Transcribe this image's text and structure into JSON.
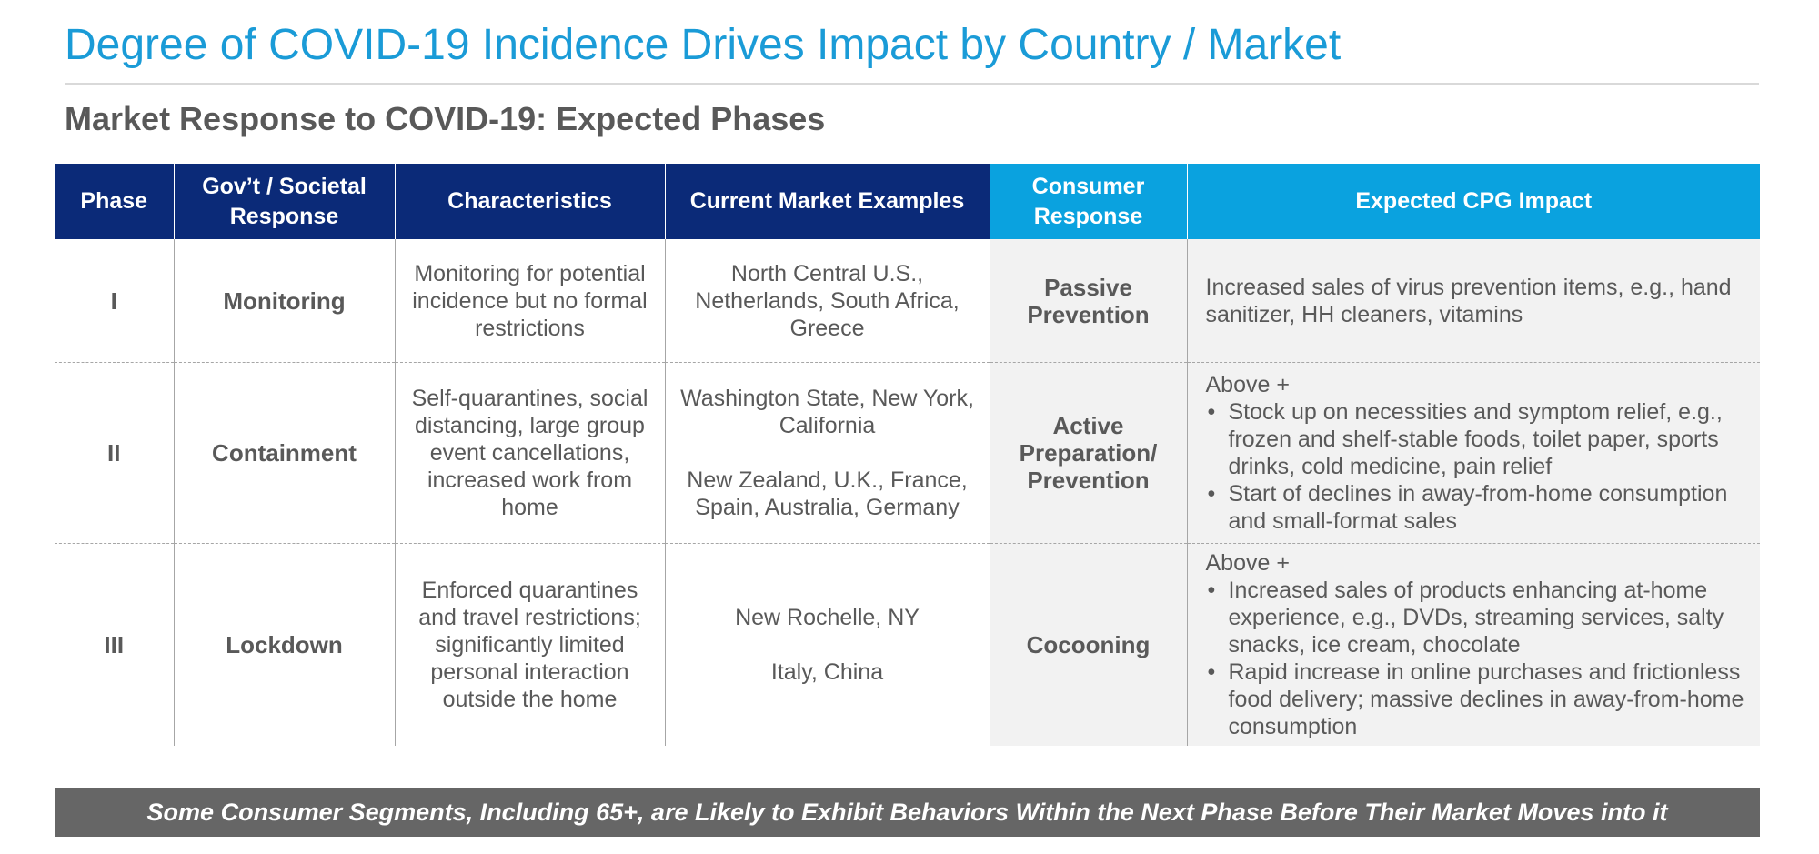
{
  "title": "Degree of COVID-19 Incidence Drives Impact by Country / Market",
  "subtitle": "Market Response to COVID-19: Expected Phases",
  "table": {
    "headers": {
      "phase": "Phase",
      "response": "Gov’t / Societal Response",
      "characteristics": "Characteristics",
      "examples": "Current Market Examples",
      "consumer": "Consumer Response",
      "impact": "Expected CPG Impact"
    },
    "rows": [
      {
        "phase": "I",
        "response": "Monitoring",
        "characteristics": "Monitoring for potential incidence but no formal restrictions",
        "examples": [
          "North Central U.S., Netherlands, South Africa, Greece"
        ],
        "consumer": "Passive Prevention",
        "impact_intro": "Increased sales of virus prevention items, e.g., hand sanitizer, HH cleaners, vitamins",
        "impact_bullets": []
      },
      {
        "phase": "II",
        "response": "Containment",
        "characteristics": "Self-quarantines, social distancing, large group event cancellations, increased work from home",
        "examples": [
          "Washington State, New York, California",
          "New Zealand, U.K., France, Spain, Australia, Germany"
        ],
        "consumer": "Active Preparation/ Prevention",
        "impact_intro": "Above +",
        "impact_bullets": [
          "Stock up on necessities and symptom relief, e.g., frozen and shelf-stable foods, toilet paper, sports drinks, cold medicine, pain relief",
          "Start of declines in away-from-home consumption and small-format sales"
        ]
      },
      {
        "phase": "III",
        "response": "Lockdown",
        "characteristics": "Enforced quarantines and travel restrictions; significantly limited personal interaction outside the home",
        "examples": [
          "New Rochelle, NY",
          "Italy, China"
        ],
        "consumer": "Cocooning",
        "impact_intro": "Above +",
        "impact_bullets": [
          "Increased sales of products enhancing at-home experience, e.g., DVDs, streaming services, salty snacks, ice cream, chocolate",
          "Rapid increase in online purchases and frictionless food delivery; massive declines in away-from-home consumption"
        ]
      }
    ]
  },
  "footer": "Some Consumer Segments, Including 65+, are Likely to Exhibit Behaviors Within the Next Phase Before Their Market Moves into it",
  "colors": {
    "title": "#1a9bd7",
    "header_navy": "#0b2a78",
    "header_cyan": "#0aa2df",
    "consumer_fill": "#f2f2f2",
    "footer_bar": "#666666",
    "body_text": "#595959"
  }
}
